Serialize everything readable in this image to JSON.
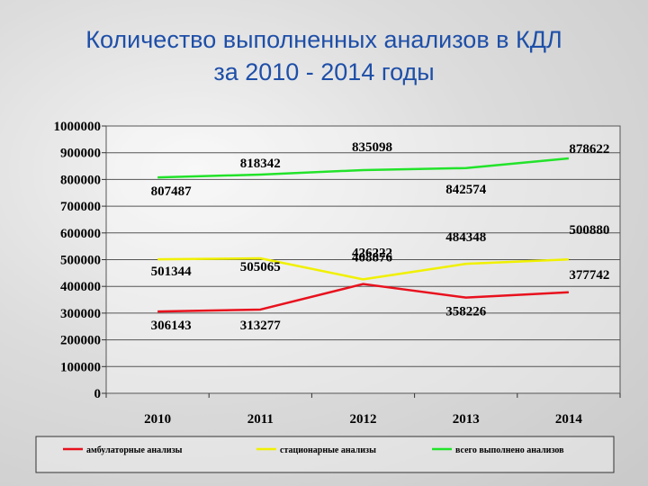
{
  "title_lines": [
    "Количество выполненных анализов в КДЛ",
    "за 2010 - 2014 годы"
  ],
  "chart_data": {
    "type": "line",
    "title": "Количество выполненных анализов в КДЛ за 2010 - 2014 годы",
    "categories": [
      "2010",
      "2011",
      "2012",
      "2013",
      "2014"
    ],
    "ylim": [
      0,
      1000000
    ],
    "ytick_labels": [
      "0",
      "100000",
      "200000",
      "300000",
      "400000",
      "500000",
      "600000",
      "700000",
      "800000",
      "900000",
      "1000000"
    ],
    "grid": "horizontal",
    "legend_position": "bottom",
    "series": [
      {
        "name": "амбулаторные анализы",
        "color": "#e8111d",
        "values": [
          306143,
          313277,
          408876,
          358226,
          377742
        ],
        "labels": [
          "306143",
          "313277",
          "408876",
          "358226",
          "377742"
        ]
      },
      {
        "name": "стационарные анализы",
        "color": "#f0f000",
        "values": [
          501344,
          505065,
          426222,
          484348,
          500880
        ],
        "labels": [
          "501344",
          "505065",
          "426222",
          "484348",
          "500880"
        ]
      },
      {
        "name": "всего выполнено анализов",
        "color": "#22e32a",
        "values": [
          807487,
          818342,
          835098,
          842574,
          878622
        ],
        "labels": [
          "807487",
          "818342",
          "835098",
          "842574",
          "878622"
        ]
      }
    ]
  }
}
